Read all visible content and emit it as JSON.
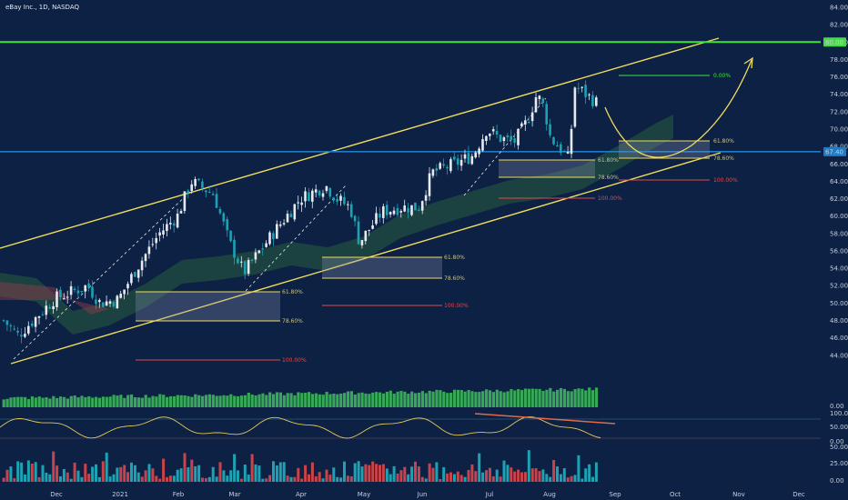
{
  "header": {
    "title": "eBay Inc., 1D, NASDAQ"
  },
  "colors": {
    "background": "#0c2144",
    "up": "#e6e9ef",
    "down": "#1ca2b3",
    "channel": "#f2dc5d",
    "resistance": "#3fe03f",
    "support": "#1e7bc4",
    "fib_zone": "#f2dc5d",
    "fib_100": "#e04a4a",
    "fib_0": "#3fe03f",
    "volume": "#3fbf5a",
    "osc": "#e6c85a",
    "osc_trend": "#e06a4a",
    "hist_up": "#1ca2b3",
    "hist_down": "#c8444a"
  },
  "chart_data": {
    "type": "candlestick",
    "title": "eBay Inc., 1D, NASDAQ",
    "x_ticks": [
      "Dec",
      "2021",
      "Feb",
      "Mar",
      "Apr",
      "May",
      "Jun",
      "Jul",
      "Aug",
      "Sep",
      "Oct",
      "Nov",
      "Dec"
    ],
    "y_ticks": [
      "84.00",
      "82.00",
      "80.00",
      "78.00",
      "76.00",
      "74.00",
      "72.00",
      "70.00",
      "68.00",
      "66.00",
      "64.00",
      "62.00",
      "60.00",
      "58.00",
      "56.00",
      "54.00",
      "52.00",
      "50.00",
      "48.00",
      "46.00",
      "44.00"
    ],
    "ylim": [
      44,
      84
    ],
    "horizontal_levels": [
      {
        "price": 80.0,
        "label": "80.00",
        "color": "#3fe03f"
      },
      {
        "price": 67.4,
        "label": "67.40",
        "color": "#1e7bc4"
      }
    ],
    "fib_blocks": [
      {
        "levels": [
          "61.80%",
          "78.60%",
          "100.00%"
        ]
      },
      {
        "levels": [
          "61.80%",
          "78.60%",
          "100.00%"
        ]
      },
      {
        "levels": [
          "61.80%",
          "78.60%",
          "100.00%"
        ]
      },
      {
        "levels": [
          "0.00%",
          "61.80%",
          "78.60%",
          "100.00%"
        ]
      }
    ],
    "volume_axis": [
      "0.00"
    ],
    "oscillator_axis": [
      "100.00",
      "50.00",
      "0.00"
    ],
    "histogram_axis": [
      "50.00",
      "25.00",
      "0.00"
    ]
  }
}
